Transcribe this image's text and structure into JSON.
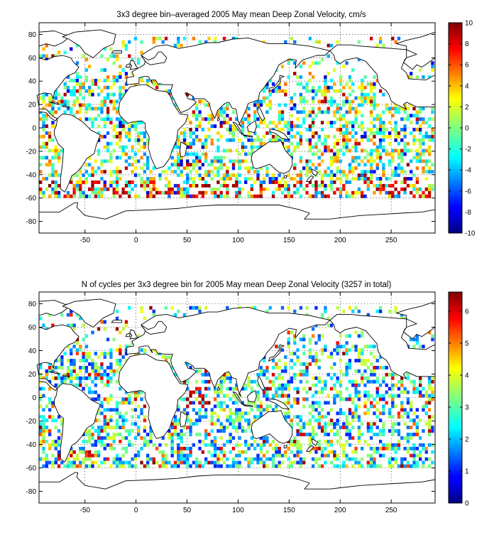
{
  "map_top": {
    "title": "3x3 degree bin–averaged 2005 May mean Deep Zonal Velocity, cm/s",
    "x_ticks": [
      "-50",
      "0",
      "50",
      "100",
      "150",
      "200",
      "250"
    ],
    "y_ticks": [
      "80",
      "60",
      "40",
      "20",
      "0",
      "-20",
      "-40",
      "-60",
      "-80"
    ],
    "colorbar": {
      "ticks": [
        "10",
        "8",
        "6",
        "4",
        "2",
        "0",
        "-2",
        "-4",
        "-6",
        "-8",
        "-10"
      ],
      "range": [
        -10,
        10
      ],
      "colormap": "jet"
    }
  },
  "map_bottom": {
    "title": "N of cycles per 3x3 degree bin for 2005 May mean Deep Zonal Velocity (3257 in total)",
    "x_ticks": [
      "-50",
      "0",
      "50",
      "100",
      "150",
      "200",
      "250"
    ],
    "y_ticks": [
      "80",
      "60",
      "40",
      "20",
      "0",
      "-20",
      "-40",
      "-60",
      "-80"
    ],
    "colorbar": {
      "ticks": [
        "6",
        "5",
        "4",
        "3",
        "2",
        "1",
        "0"
      ],
      "range": [
        0,
        6.6
      ],
      "colormap": "jet"
    }
  },
  "colors": {
    "high": "#7f0000",
    "mid": "#7fff7f",
    "low": "#00007f",
    "land": "#ffffff"
  }
}
